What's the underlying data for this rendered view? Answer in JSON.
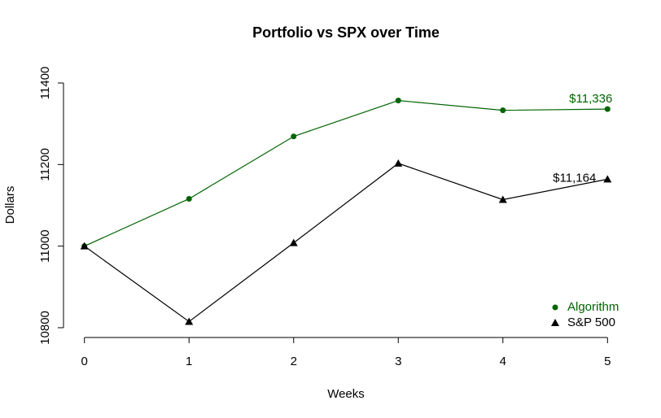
{
  "chart_data": {
    "type": "line",
    "title": "Portfolio vs SPX over Time",
    "x_label": "Weeks",
    "y_label": "Dollars",
    "x": [
      0,
      1,
      2,
      3,
      4,
      5
    ],
    "series": [
      {
        "name": "Algorithm",
        "color": "#006400",
        "marker": "circle",
        "values": [
          11000,
          11116,
          11269,
          11357,
          11333,
          11336
        ],
        "value_labels": [
          null,
          null,
          null,
          null,
          null,
          "$11,336"
        ]
      },
      {
        "name": "S&P 500",
        "color": "#000000",
        "marker": "triangle",
        "values": [
          11000,
          10815,
          11008,
          11203,
          11114,
          11164
        ],
        "value_labels": [
          null,
          null,
          null,
          null,
          null,
          "$11,164"
        ]
      }
    ],
    "xlim": [
      -0.2,
      5.2
    ],
    "xticks": [
      0,
      1,
      2,
      3,
      4,
      5
    ],
    "ylim": [
      10776,
      11424
    ],
    "yticks": [
      10800,
      11000,
      11200,
      11400
    ],
    "grid": false,
    "legend": "bottom-right"
  }
}
